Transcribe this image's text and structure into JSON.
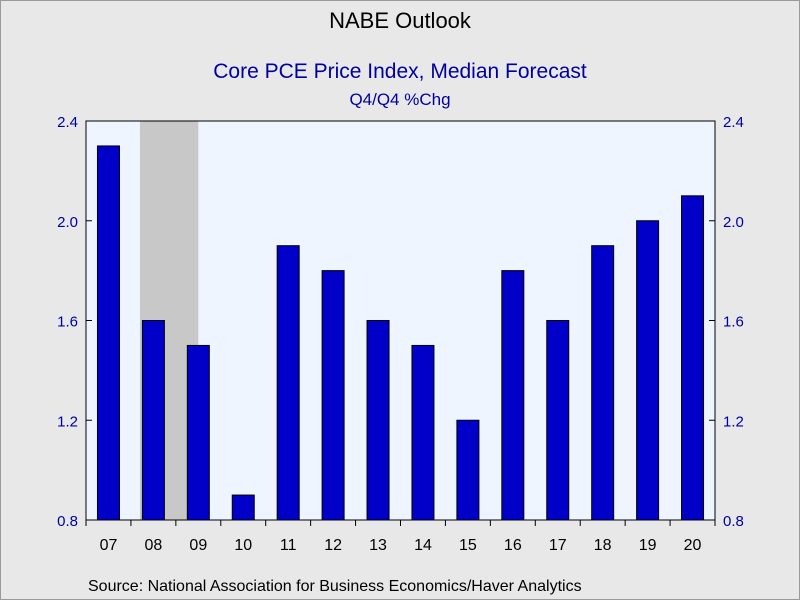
{
  "title": "NABE Outlook",
  "subtitle": "Core PCE Price Index, Median Forecast",
  "subtitle2": "Q4/Q4 %Chg",
  "source": "Source:  National Association for Business Economics/Haver Analytics",
  "colors": {
    "bar": "#0000c8",
    "plot_bg": "#eef5ff",
    "shade": "#c8c8c8",
    "axis_text": "#0000a0"
  },
  "chart_data": {
    "type": "bar",
    "title": "Core PCE Price Index, Median Forecast",
    "subtitle": "Q4/Q4 %Chg",
    "categories": [
      "07",
      "08",
      "09",
      "10",
      "11",
      "12",
      "13",
      "14",
      "15",
      "16",
      "17",
      "18",
      "19",
      "20"
    ],
    "values": [
      2.3,
      1.6,
      1.5,
      0.9,
      1.9,
      1.8,
      1.6,
      1.5,
      1.2,
      1.8,
      1.6,
      1.9,
      2.0,
      2.1
    ],
    "ylim": [
      0.8,
      2.4
    ],
    "yticks": [
      "0.8",
      "1.2",
      "1.6",
      "2.0",
      "2.4"
    ],
    "ytick_values": [
      0.8,
      1.2,
      1.6,
      2.0,
      2.4
    ],
    "recession_shading": [
      "08",
      "09"
    ],
    "grid": false,
    "legend": "none",
    "dual_y_axis": true
  }
}
